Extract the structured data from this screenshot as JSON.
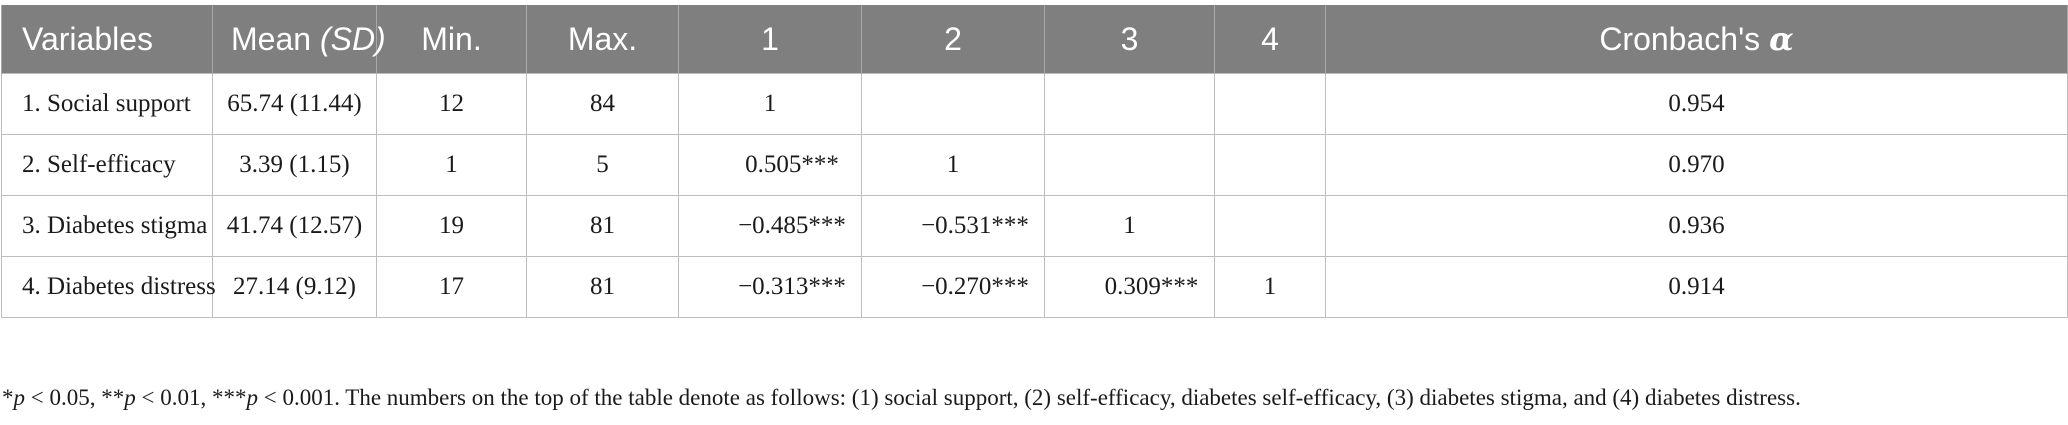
{
  "table": {
    "headers": {
      "variables": "Variables",
      "mean_main": "Mean ",
      "mean_sd": "(SD)",
      "min": "Min.",
      "max": "Max.",
      "c1": "1",
      "c2": "2",
      "c3": "3",
      "c4": "4",
      "alpha_main": "Cronbach's ",
      "alpha_symbol": "α"
    },
    "rows": [
      {
        "variable": "1.  Social support",
        "mean_sd": "65.74 (11.44)",
        "min": "12",
        "max": "84",
        "c1": "1",
        "c2": "",
        "c3": "",
        "c4": "",
        "alpha": "0.954"
      },
      {
        "variable": "2.  Self-efficacy",
        "mean_sd": "3.39 (1.15)",
        "min": "1",
        "max": "5",
        "c1": "0.505***",
        "c2": "1",
        "c3": "",
        "c4": "",
        "alpha": "0.970"
      },
      {
        "variable": "3.  Diabetes stigma",
        "mean_sd": "41.74 (12.57)",
        "min": "19",
        "max": "81",
        "c1": "−0.485***",
        "c2": "−0.531***",
        "c3": "1",
        "c4": "",
        "alpha": "0.936"
      },
      {
        "variable": "4.  Diabetes distress",
        "mean_sd": "27.14 (9.12)",
        "min": "17",
        "max": "81",
        "c1": "−0.313***",
        "c2": "−0.270***",
        "c3": "0.309***",
        "c4": "1",
        "alpha": "0.914"
      }
    ]
  },
  "footnote": {
    "s1": "*",
    "p1": "p",
    "s2": " < 0.05, **",
    "p2": "p",
    "s3": " < 0.01, ***",
    "p3": "p",
    "s4": " < 0.001. The numbers on the top of the table denote as follows: (1) social support, (2) self-efficacy, diabetes self-efficacy, (3) diabetes stigma, and (4) diabetes distress."
  }
}
